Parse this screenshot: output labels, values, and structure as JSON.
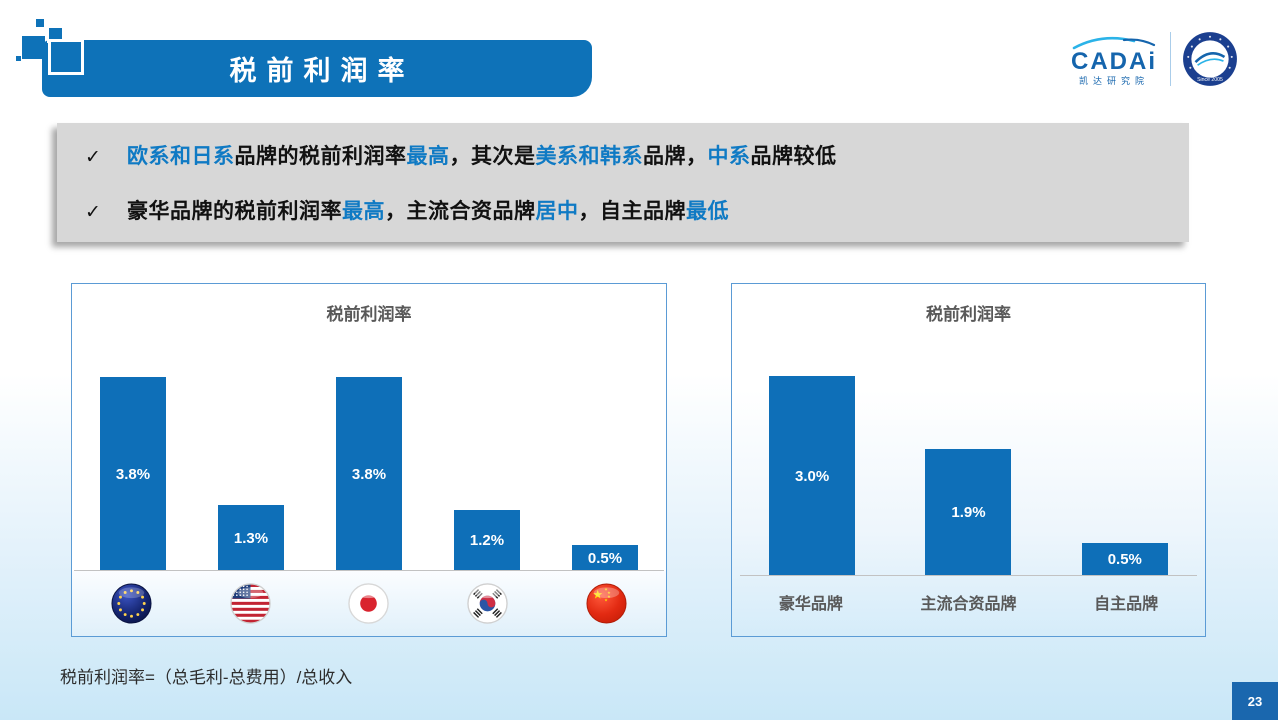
{
  "header": {
    "title": "税前利润率"
  },
  "logo": {
    "brand": "CADAi",
    "sub": "凯达研究院",
    "badge": "Since 2005"
  },
  "bullet_mark": "✓",
  "bullets": [
    {
      "segments": [
        {
          "t": "欧系和日系",
          "c": "accent"
        },
        {
          "t": "品牌的税前利润率",
          "c": "plain"
        },
        {
          "t": "最高",
          "c": "accent"
        },
        {
          "t": "，其次是",
          "c": "plain"
        },
        {
          "t": "美系和韩系",
          "c": "accent"
        },
        {
          "t": "品牌，",
          "c": "plain"
        },
        {
          "t": "中系",
          "c": "accent"
        },
        {
          "t": "品牌较低",
          "c": "plain"
        }
      ]
    },
    {
      "segments": [
        {
          "t": "豪华品牌的税前利润率",
          "c": "plain"
        },
        {
          "t": "最高",
          "c": "accent"
        },
        {
          "t": "，主流合资品牌",
          "c": "plain"
        },
        {
          "t": "居中",
          "c": "accent"
        },
        {
          "t": "，自主品牌",
          "c": "plain"
        },
        {
          "t": "最低",
          "c": "accent"
        }
      ]
    }
  ],
  "chart_data": [
    {
      "type": "bar",
      "title": "税前利润率",
      "categories": [
        "欧系",
        "美系",
        "日系",
        "韩系",
        "中系"
      ],
      "category_icons": [
        "eu-flag",
        "us-flag",
        "japan-flag",
        "korea-flag",
        "china-flag"
      ],
      "values": [
        3.8,
        1.3,
        3.8,
        1.2,
        0.5
      ],
      "labels": [
        "3.8%",
        "1.3%",
        "3.8%",
        "1.2%",
        "0.5%"
      ],
      "unit": "%",
      "xlabel": "",
      "ylabel": "",
      "ylim": [
        0,
        4.5
      ],
      "grid": false,
      "legend": false,
      "bar_color": "#0e6fb8",
      "label_position": "inside-center"
    },
    {
      "type": "bar",
      "title": "税前利润率",
      "categories": [
        "豪华品牌",
        "主流合资品牌",
        "自主品牌"
      ],
      "values": [
        3.0,
        1.9,
        0.5
      ],
      "labels": [
        "3.0%",
        "1.9%",
        "0.5%"
      ],
      "unit": "%",
      "xlabel": "",
      "ylabel": "",
      "ylim": [
        0,
        3.6
      ],
      "grid": false,
      "legend": false,
      "bar_color": "#0e6fb8",
      "label_position": "inside-center"
    }
  ],
  "footnote": "税前利润率=（总毛利-总费用）/总收入",
  "page": {
    "number": "23"
  },
  "colors": {
    "banner_blue": "#0e72b8",
    "bar_blue": "#0e6fb8",
    "accent_text_blue": "#0f7ac4",
    "summary_box_gray": "#d7d7d7",
    "chart_border": "#5b9bd5",
    "title_gray": "#595959",
    "page_badge_blue": "#1a67ae"
  }
}
